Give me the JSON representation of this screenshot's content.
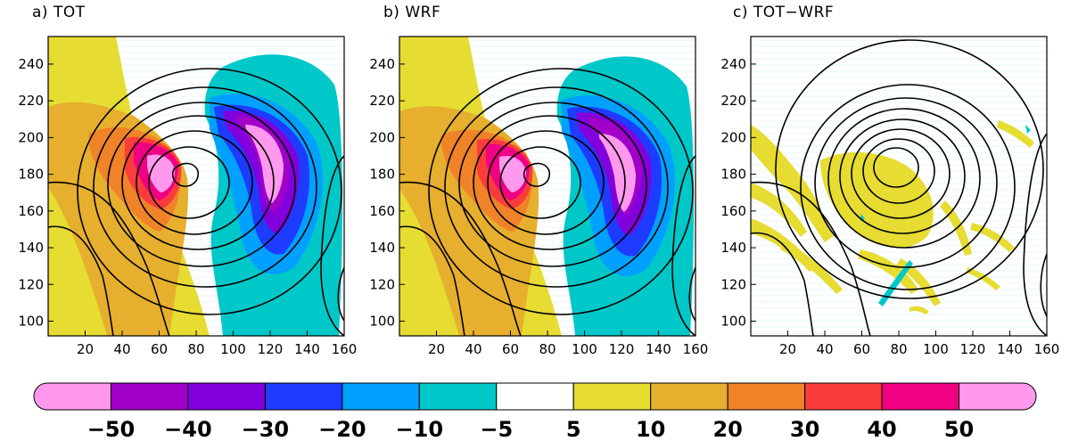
{
  "chart_data": [
    {
      "type": "heatmap",
      "panel_label": "a) TOT",
      "x_ticks": [
        20,
        40,
        60,
        80,
        100,
        120,
        140,
        160
      ],
      "y_ticks": [
        100,
        120,
        140,
        160,
        180,
        200,
        220,
        240
      ],
      "xlim": [
        0,
        160
      ],
      "ylim": [
        92,
        255
      ],
      "overlay": "black contours (geopotential-like field), low centered near (72, 185)"
    },
    {
      "type": "heatmap",
      "panel_label": "b) WRF",
      "x_ticks": [
        20,
        40,
        60,
        80,
        100,
        120,
        140,
        160
      ],
      "y_ticks": [
        100,
        120,
        140,
        160,
        180,
        200,
        220,
        240
      ],
      "xlim": [
        0,
        160
      ],
      "ylim": [
        92,
        255
      ],
      "overlay": "black contours (geopotential-like field), low centered near (72, 185)"
    },
    {
      "type": "heatmap",
      "panel_label": "c) TOT−WRF",
      "x_ticks": [
        20,
        40,
        60,
        80,
        100,
        120,
        140,
        160
      ],
      "y_ticks": [
        100,
        120,
        140,
        160,
        180,
        200,
        220,
        240
      ],
      "xlim": [
        0,
        160
      ],
      "ylim": [
        92,
        255
      ],
      "overlay": "black contours (geopotential-like field), low centered near (78, 187)"
    }
  ],
  "colorbar": {
    "labels": [
      "−50",
      "−40",
      "−30",
      "−20",
      "−10",
      "−5",
      "5",
      "10",
      "20",
      "30",
      "40",
      "50"
    ],
    "colors": [
      "#ff99ee",
      "#a000c8",
      "#8200dc",
      "#1e3cff",
      "#00a0ff",
      "#00c8c8",
      "#ffffff",
      "#e6dc32",
      "#e6af2d",
      "#f08228",
      "#fa3c3c",
      "#f00082",
      "#ff99ee"
    ]
  }
}
